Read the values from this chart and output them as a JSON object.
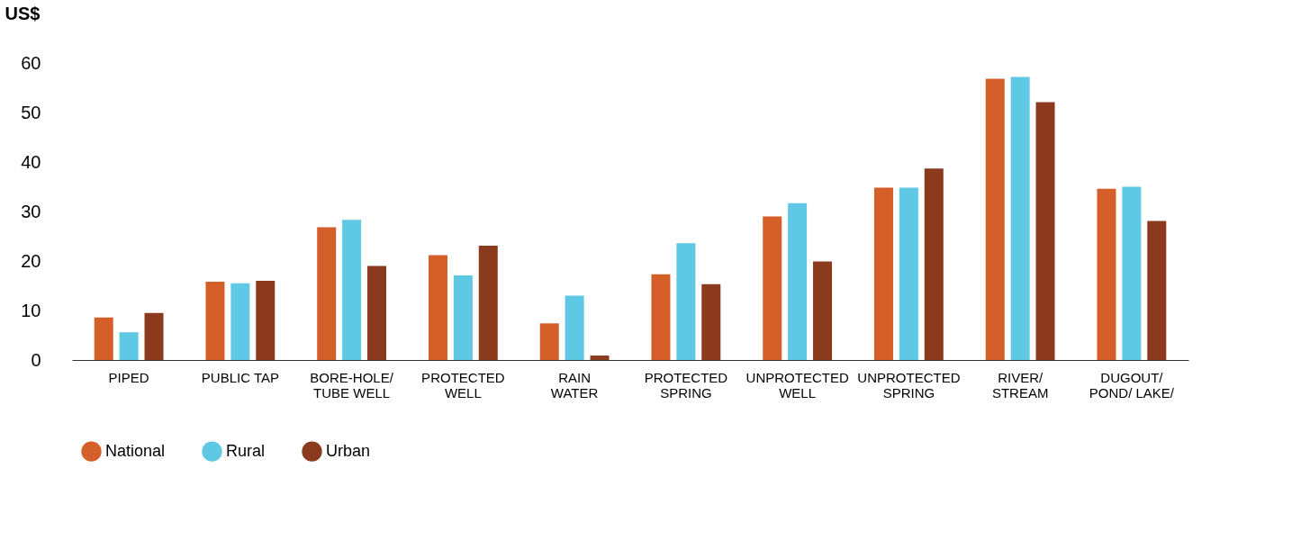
{
  "chart_data": {
    "type": "bar",
    "ylabel": "US$",
    "categories": [
      "PIPED",
      "PUBLIC TAP",
      "BORE-HOLE/\nTUBE WELL",
      "PROTECTED\nWELL",
      "RAIN\nWATER",
      "PROTECTED\nSPRING",
      "UNPROTECTED\nWELL",
      "UNPROTECTED\nSPRING",
      "RIVER/\nSTREAM",
      "DUGOUT/\nPOND/ LAKE/"
    ],
    "series": [
      {
        "name": "National",
        "color": "#d45f28",
        "values": [
          8.6,
          15.8,
          26.8,
          21.2,
          7.4,
          17.3,
          29.0,
          34.8,
          56.8,
          34.6
        ]
      },
      {
        "name": "Rural",
        "color": "#5ec8e5",
        "values": [
          5.6,
          15.5,
          28.3,
          17.1,
          13.0,
          23.6,
          31.7,
          34.8,
          57.2,
          35.0
        ]
      },
      {
        "name": "Urban",
        "color": "#8b3a1e",
        "values": [
          9.5,
          16.0,
          19.0,
          23.1,
          0.9,
          15.3,
          19.9,
          38.7,
          52.1,
          28.1
        ]
      }
    ],
    "ylim": [
      0,
      60
    ],
    "yticks": [
      0,
      10,
      20,
      30,
      40,
      50,
      60
    ],
    "grid": false,
    "legend": "bottom left"
  }
}
